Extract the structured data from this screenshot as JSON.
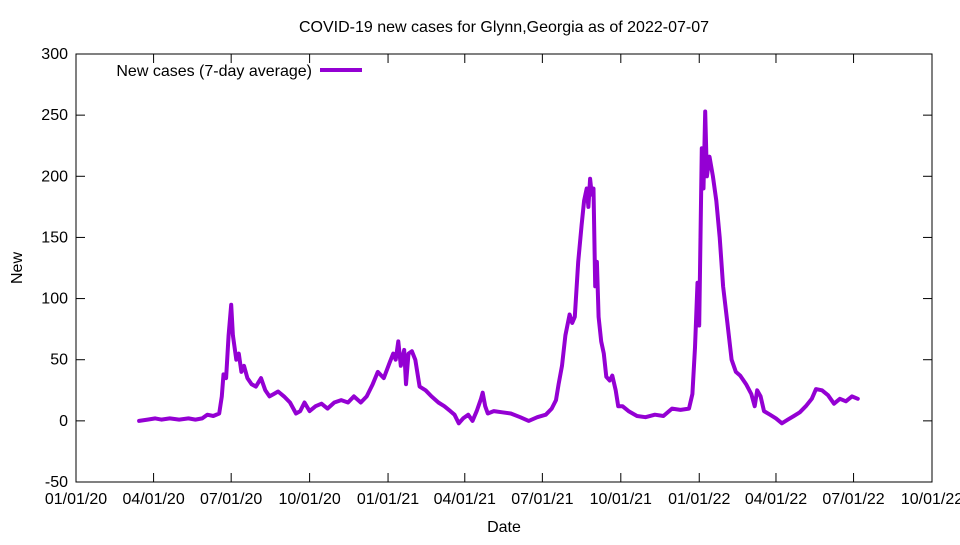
{
  "chart_data": {
    "type": "line",
    "title": "COVID-19 new cases for Glynn,Georgia as of 2022-07-07",
    "xlabel": "Date",
    "ylabel": "New",
    "ylim": [
      -50,
      300
    ],
    "yticks": [
      -50,
      0,
      50,
      100,
      150,
      200,
      250,
      300
    ],
    "xlim": [
      "2020-01-01",
      "2022-10-01"
    ],
    "xticks": [
      {
        "date": "2020-01-01",
        "label": "01/01/20"
      },
      {
        "date": "2020-04-01",
        "label": "04/01/20"
      },
      {
        "date": "2020-07-01",
        "label": "07/01/20"
      },
      {
        "date": "2020-10-01",
        "label": "10/01/20"
      },
      {
        "date": "2021-01-01",
        "label": "01/01/21"
      },
      {
        "date": "2021-04-01",
        "label": "04/01/21"
      },
      {
        "date": "2021-07-01",
        "label": "07/01/21"
      },
      {
        "date": "2021-10-01",
        "label": "10/01/21"
      },
      {
        "date": "2022-01-01",
        "label": "01/01/22"
      },
      {
        "date": "2022-04-01",
        "label": "04/01/22"
      },
      {
        "date": "2022-07-01",
        "label": "07/01/22"
      },
      {
        "date": "2022-10-01",
        "label": "10/01/22"
      }
    ],
    "grid": false,
    "legend_position": "top-left",
    "series": [
      {
        "name": "New cases (7-day average)",
        "color": "#9400d3",
        "points": [
          [
            "2020-03-15",
            0
          ],
          [
            "2020-03-25",
            1
          ],
          [
            "2020-04-03",
            2
          ],
          [
            "2020-04-10",
            1
          ],
          [
            "2020-04-20",
            2
          ],
          [
            "2020-05-01",
            1
          ],
          [
            "2020-05-12",
            2
          ],
          [
            "2020-05-20",
            1
          ],
          [
            "2020-05-28",
            2
          ],
          [
            "2020-06-03",
            5
          ],
          [
            "2020-06-10",
            4
          ],
          [
            "2020-06-17",
            6
          ],
          [
            "2020-06-20",
            20
          ],
          [
            "2020-06-22",
            38
          ],
          [
            "2020-06-25",
            35
          ],
          [
            "2020-06-28",
            70
          ],
          [
            "2020-07-01",
            95
          ],
          [
            "2020-07-03",
            70
          ],
          [
            "2020-07-05",
            60
          ],
          [
            "2020-07-07",
            50
          ],
          [
            "2020-07-10",
            55
          ],
          [
            "2020-07-13",
            40
          ],
          [
            "2020-07-16",
            45
          ],
          [
            "2020-07-20",
            35
          ],
          [
            "2020-07-25",
            30
          ],
          [
            "2020-07-30",
            28
          ],
          [
            "2020-08-05",
            35
          ],
          [
            "2020-08-10",
            25
          ],
          [
            "2020-08-15",
            20
          ],
          [
            "2020-08-20",
            22
          ],
          [
            "2020-08-25",
            24
          ],
          [
            "2020-09-01",
            20
          ],
          [
            "2020-09-08",
            15
          ],
          [
            "2020-09-15",
            6
          ],
          [
            "2020-09-20",
            8
          ],
          [
            "2020-09-25",
            15
          ],
          [
            "2020-10-01",
            8
          ],
          [
            "2020-10-08",
            12
          ],
          [
            "2020-10-15",
            14
          ],
          [
            "2020-10-22",
            10
          ],
          [
            "2020-10-30",
            15
          ],
          [
            "2020-11-07",
            17
          ],
          [
            "2020-11-15",
            15
          ],
          [
            "2020-11-22",
            20
          ],
          [
            "2020-11-30",
            15
          ],
          [
            "2020-12-07",
            20
          ],
          [
            "2020-12-14",
            30
          ],
          [
            "2020-12-20",
            40
          ],
          [
            "2020-12-27",
            35
          ],
          [
            "2021-01-03",
            48
          ],
          [
            "2021-01-07",
            55
          ],
          [
            "2021-01-10",
            50
          ],
          [
            "2021-01-13",
            65
          ],
          [
            "2021-01-16",
            45
          ],
          [
            "2021-01-20",
            58
          ],
          [
            "2021-01-22",
            30
          ],
          [
            "2021-01-25",
            55
          ],
          [
            "2021-01-29",
            57
          ],
          [
            "2021-02-02",
            50
          ],
          [
            "2021-02-07",
            28
          ],
          [
            "2021-02-14",
            25
          ],
          [
            "2021-02-21",
            20
          ],
          [
            "2021-03-01",
            15
          ],
          [
            "2021-03-08",
            12
          ],
          [
            "2021-03-15",
            8
          ],
          [
            "2021-03-20",
            5
          ],
          [
            "2021-03-25",
            -2
          ],
          [
            "2021-03-30",
            2
          ],
          [
            "2021-04-05",
            5
          ],
          [
            "2021-04-10",
            0
          ],
          [
            "2021-04-15",
            8
          ],
          [
            "2021-04-20",
            18
          ],
          [
            "2021-04-22",
            23
          ],
          [
            "2021-04-25",
            12
          ],
          [
            "2021-04-28",
            6
          ],
          [
            "2021-05-05",
            8
          ],
          [
            "2021-05-15",
            7
          ],
          [
            "2021-05-25",
            6
          ],
          [
            "2021-06-05",
            3
          ],
          [
            "2021-06-15",
            0
          ],
          [
            "2021-06-25",
            3
          ],
          [
            "2021-07-05",
            5
          ],
          [
            "2021-07-12",
            10
          ],
          [
            "2021-07-17",
            17
          ],
          [
            "2021-07-20",
            30
          ],
          [
            "2021-07-24",
            45
          ],
          [
            "2021-07-28",
            70
          ],
          [
            "2021-08-02",
            87
          ],
          [
            "2021-08-05",
            80
          ],
          [
            "2021-08-08",
            85
          ],
          [
            "2021-08-12",
            130
          ],
          [
            "2021-08-16",
            160
          ],
          [
            "2021-08-19",
            180
          ],
          [
            "2021-08-22",
            190
          ],
          [
            "2021-08-24",
            175
          ],
          [
            "2021-08-26",
            198
          ],
          [
            "2021-08-28",
            185
          ],
          [
            "2021-08-30",
            190
          ],
          [
            "2021-09-01",
            110
          ],
          [
            "2021-09-03",
            130
          ],
          [
            "2021-09-05",
            85
          ],
          [
            "2021-09-08",
            65
          ],
          [
            "2021-09-11",
            55
          ],
          [
            "2021-09-14",
            36
          ],
          [
            "2021-09-18",
            33
          ],
          [
            "2021-09-21",
            37
          ],
          [
            "2021-09-25",
            25
          ],
          [
            "2021-09-28",
            12
          ],
          [
            "2021-10-03",
            12
          ],
          [
            "2021-10-10",
            8
          ],
          [
            "2021-10-20",
            4
          ],
          [
            "2021-10-30",
            3
          ],
          [
            "2021-11-10",
            5
          ],
          [
            "2021-11-20",
            4
          ],
          [
            "2021-11-30",
            10
          ],
          [
            "2021-12-10",
            9
          ],
          [
            "2021-12-20",
            10
          ],
          [
            "2021-12-24",
            22
          ],
          [
            "2021-12-27",
            60
          ],
          [
            "2021-12-30",
            113
          ],
          [
            "2022-01-01",
            78
          ],
          [
            "2022-01-04",
            223
          ],
          [
            "2022-01-06",
            190
          ],
          [
            "2022-01-08",
            253
          ],
          [
            "2022-01-10",
            200
          ],
          [
            "2022-01-13",
            216
          ],
          [
            "2022-01-17",
            200
          ],
          [
            "2022-01-21",
            180
          ],
          [
            "2022-01-25",
            150
          ],
          [
            "2022-01-29",
            110
          ],
          [
            "2022-02-03",
            80
          ],
          [
            "2022-02-08",
            50
          ],
          [
            "2022-02-13",
            40
          ],
          [
            "2022-02-18",
            37
          ],
          [
            "2022-02-25",
            30
          ],
          [
            "2022-03-03",
            22
          ],
          [
            "2022-03-07",
            12
          ],
          [
            "2022-03-10",
            25
          ],
          [
            "2022-03-14",
            20
          ],
          [
            "2022-03-18",
            8
          ],
          [
            "2022-03-25",
            5
          ],
          [
            "2022-04-01",
            2
          ],
          [
            "2022-04-08",
            -2
          ],
          [
            "2022-04-15",
            1
          ],
          [
            "2022-04-22",
            4
          ],
          [
            "2022-04-29",
            7
          ],
          [
            "2022-05-06",
            12
          ],
          [
            "2022-05-13",
            18
          ],
          [
            "2022-05-18",
            26
          ],
          [
            "2022-05-25",
            25
          ],
          [
            "2022-06-01",
            21
          ],
          [
            "2022-06-08",
            14
          ],
          [
            "2022-06-15",
            18
          ],
          [
            "2022-06-22",
            16
          ],
          [
            "2022-06-29",
            20
          ],
          [
            "2022-07-06",
            18
          ]
        ]
      }
    ]
  }
}
